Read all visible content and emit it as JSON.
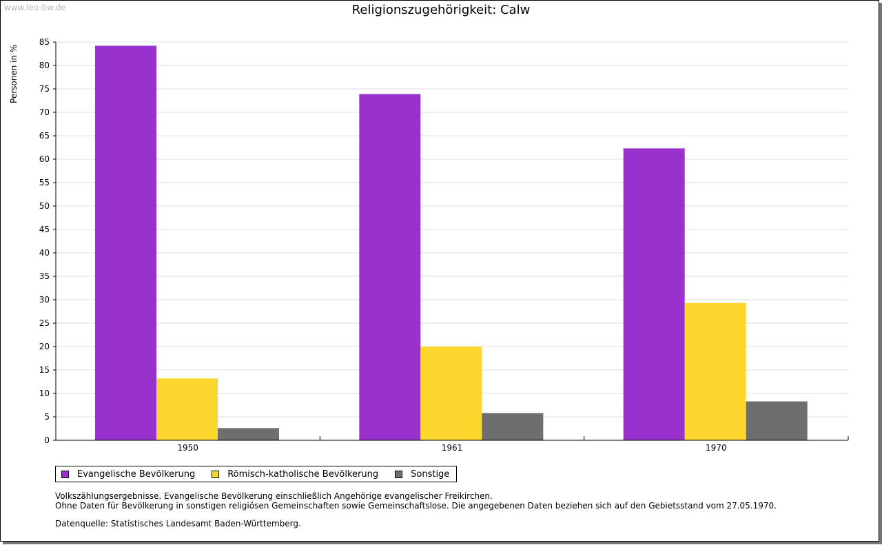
{
  "header": {
    "watermark": "www.leo-bw.de"
  },
  "chart_data": {
    "type": "bar",
    "title": "Religionszugehörigkeit: Calw",
    "xlabel": "",
    "ylabel": "Personen in %",
    "categories": [
      "1950",
      "1961",
      "1970"
    ],
    "series": [
      {
        "name": "Evangelische Bevölkerung",
        "color": "#9932CC",
        "values": [
          84.2,
          73.9,
          62.3
        ]
      },
      {
        "name": "Römisch-katholische Bevölkerung",
        "color": "#FDD62E",
        "values": [
          13.2,
          20.0,
          29.3
        ]
      },
      {
        "name": "Sonstige",
        "color": "#6E6E6E",
        "values": [
          2.6,
          5.8,
          8.3
        ]
      }
    ],
    "ylim": [
      0,
      85
    ],
    "yticks": [
      "0",
      "5",
      "10",
      "15",
      "20",
      "25",
      "30",
      "35",
      "40",
      "45",
      "50",
      "55",
      "60",
      "65",
      "70",
      "75",
      "80",
      "85"
    ],
    "grid": true,
    "legend_position": "bottom-left"
  },
  "notes": {
    "line1": "Volkszählungsergebnisse. Evangelische Bevölkerung einschließlich Angehörige evangelischer Freikirchen.",
    "line2": "Ohne Daten für Bevölkerung in sonstigen religiösen Gemeinschaften sowie Gemeinschaftslose. Die angegebenen Daten beziehen sich auf den Gebietsstand vom 27.05.1970.",
    "source": "Datenquelle: Statistisches Landesamt Baden-Württemberg."
  }
}
